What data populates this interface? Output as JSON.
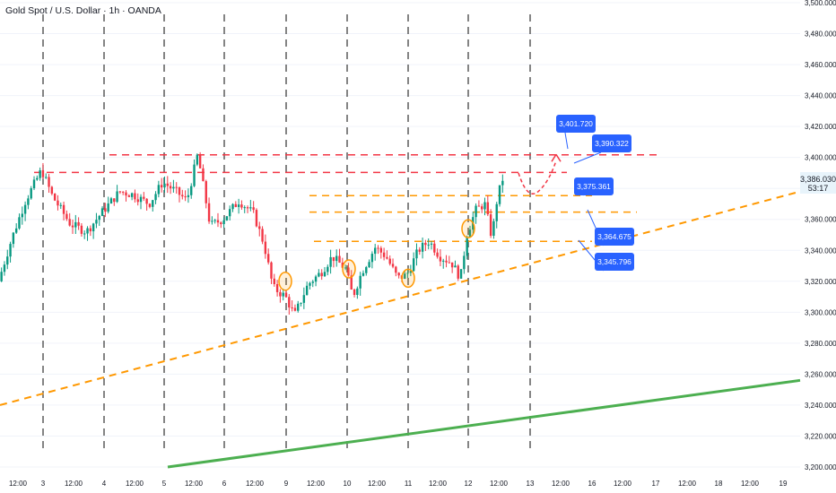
{
  "header": {
    "title": "Gold Spot / U.S. Dollar · 1h · OANDA"
  },
  "colors": {
    "up": "#089981",
    "down": "#f23645",
    "resistance": "#f23645",
    "support": "#ff9800",
    "trend_major": "#4caf50",
    "label_bg": "#2962ff",
    "price_tag": "#e8f4fb",
    "grid": "#f0f3fa"
  },
  "chart_data": {
    "type": "candlestick",
    "title": "Gold Spot / U.S. Dollar · 1h · OANDA",
    "ylim": [
      3200,
      3500
    ],
    "y_ticks": [
      "3,200.000",
      "3,220.000",
      "3,240.000",
      "3,260.000",
      "3,280.000",
      "3,300.000",
      "3,320.000",
      "3,340.000",
      "3,360.000",
      "3,380.000",
      "3,400.000",
      "3,420.000",
      "3,440.000",
      "3,460.000",
      "3,480.000",
      "3,500.000"
    ],
    "x_ticks": [
      "12:00",
      "3",
      "12:00",
      "4",
      "12:00",
      "5",
      "12:00",
      "6",
      "12:00",
      "9",
      "12:00",
      "10",
      "12:00",
      "11",
      "12:00",
      "12",
      "12:00",
      "13",
      "12:00",
      "16",
      "12:00",
      "17",
      "12:00",
      "18",
      "12:00",
      "19"
    ],
    "session_dividers": [
      "3",
      "4",
      "5",
      "6",
      "9",
      "10",
      "11",
      "12",
      "13"
    ],
    "current_price": {
      "value": "3,386.030",
      "countdown": "53:17"
    },
    "price_path": [
      [
        "3",
        3371
      ],
      [
        "3",
        3378
      ],
      [
        "3",
        3392
      ],
      [
        "3",
        3375
      ],
      [
        "3",
        3362
      ],
      [
        "3",
        3355
      ],
      [
        "4",
        3352
      ],
      [
        "4",
        3345
      ],
      [
        "4",
        3358
      ],
      [
        "4",
        3360
      ],
      [
        "4",
        3372
      ],
      [
        "4",
        3377
      ],
      [
        "5",
        3382
      ],
      [
        "5",
        3374
      ],
      [
        "5",
        3380
      ],
      [
        "5",
        3366
      ],
      [
        "5",
        3383
      ],
      [
        "5",
        3401
      ],
      [
        "6",
        3380
      ],
      [
        "6",
        3356
      ],
      [
        "6",
        3372
      ],
      [
        "6",
        3366
      ],
      [
        "6",
        3357
      ],
      [
        "6",
        3338
      ],
      [
        "9",
        3314
      ],
      [
        "9",
        3304
      ],
      [
        "9",
        3318
      ],
      [
        "9",
        3334
      ],
      [
        "9",
        3328
      ],
      [
        "9",
        3322
      ],
      [
        "10",
        3306
      ],
      [
        "10",
        3330
      ],
      [
        "10",
        3346
      ],
      [
        "10",
        3336
      ],
      [
        "10",
        3323
      ],
      [
        "10",
        3316
      ],
      [
        "11",
        3321
      ],
      [
        "11",
        3336
      ],
      [
        "11",
        3348
      ],
      [
        "11",
        3340
      ],
      [
        "11",
        3346
      ],
      [
        "11",
        3330
      ],
      [
        "12",
        3350
      ],
      [
        "12",
        3368
      ],
      [
        "12",
        3374
      ],
      [
        "12",
        3363
      ],
      [
        "12",
        3347
      ],
      [
        "12",
        3386
      ]
    ],
    "horizontal_levels": [
      {
        "value": 3401.72,
        "style": "dashed",
        "color": "resistance"
      },
      {
        "value": 3390.322,
        "style": "dashed",
        "color": "resistance"
      },
      {
        "value": 3375.361,
        "style": "dashed",
        "color": "support"
      },
      {
        "value": 3364.675,
        "style": "dashed",
        "color": "support"
      },
      {
        "value": 3345.796,
        "style": "dashed",
        "color": "support"
      }
    ],
    "trendlines": [
      {
        "style": "dashed",
        "color": "support",
        "from": [
          "3 (earlier)",
          3240
        ],
        "to": [
          "beyond 19",
          3378
        ]
      },
      {
        "style": "solid",
        "color": "trend_major",
        "from": [
          "5",
          3200
        ],
        "to": [
          "beyond 19",
          3256
        ]
      }
    ],
    "labels": [
      "3,401.720",
      "3,390.322",
      "3,375.361",
      "3,364.675",
      "3,345.796"
    ],
    "projection": [
      3390,
      3380,
      3378,
      3392,
      3402
    ]
  }
}
